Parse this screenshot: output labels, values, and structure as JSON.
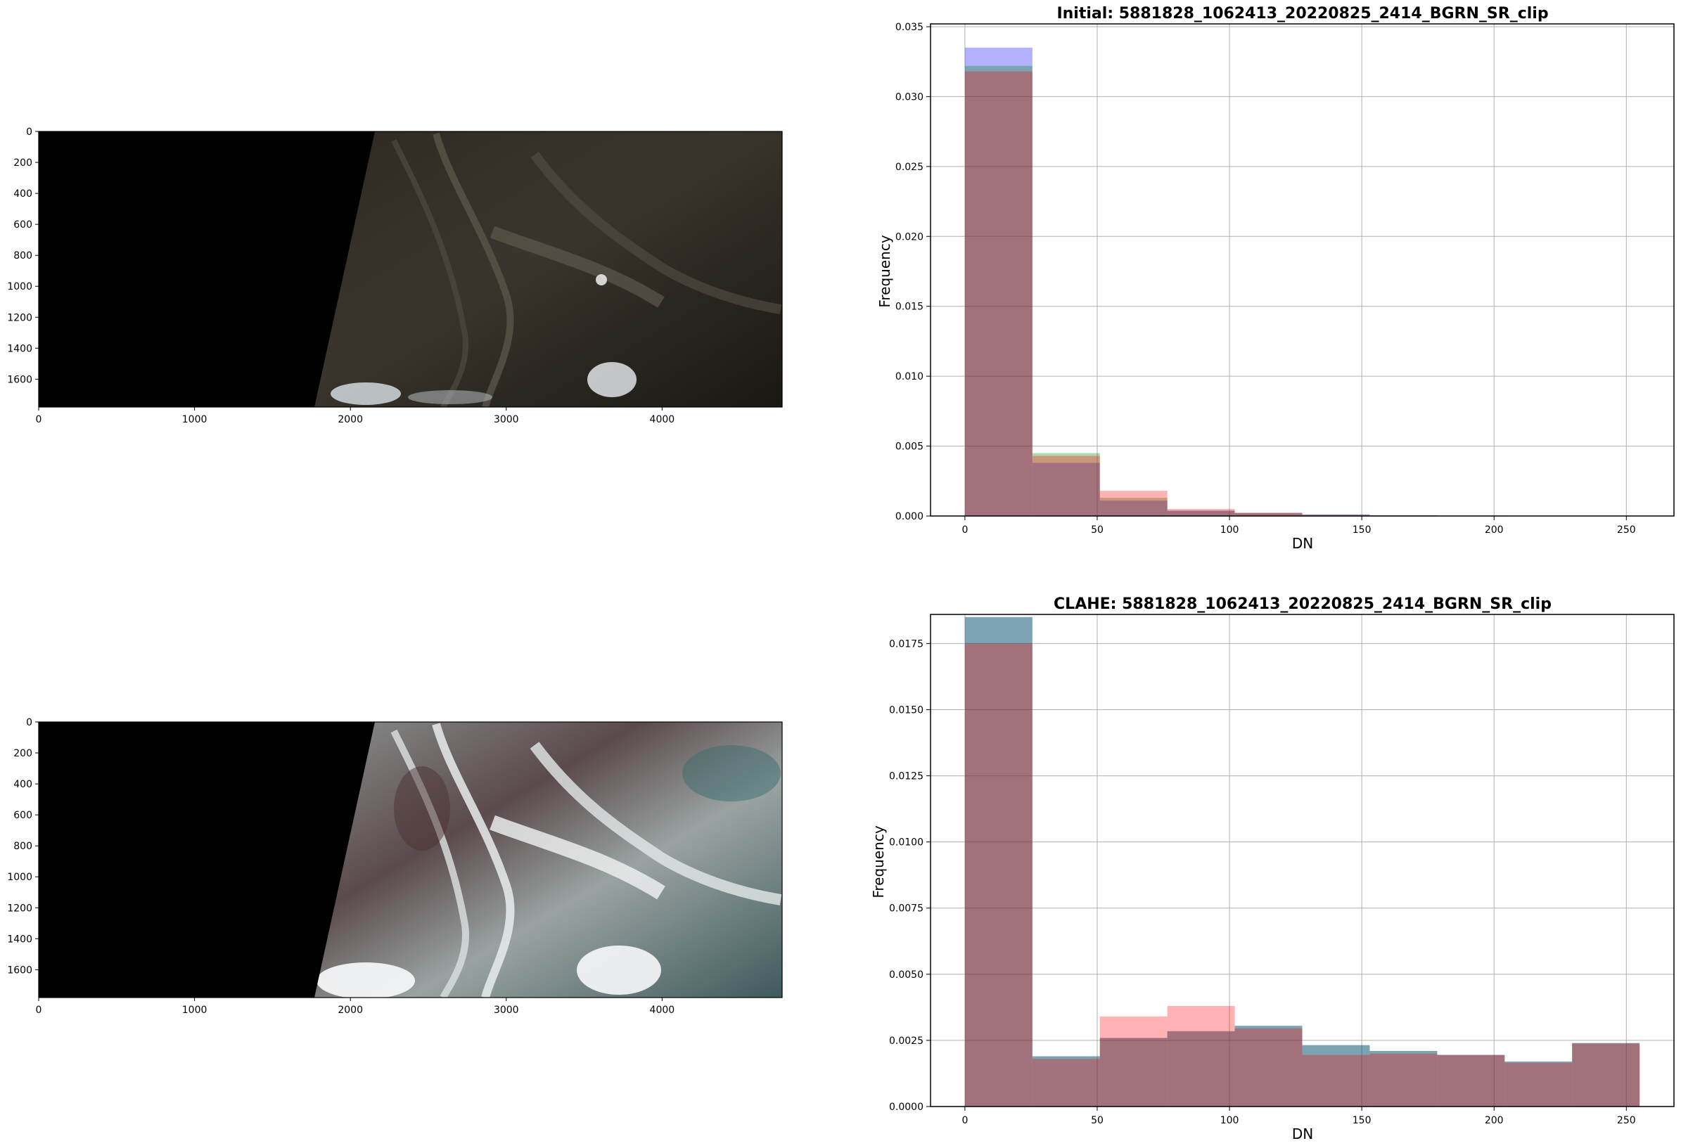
{
  "colors": {
    "blue": "#0000ff",
    "green": "#008000",
    "red": "#ff0000",
    "bar_alpha": 0.3,
    "grid": "#b0b0b0"
  },
  "images": [
    {
      "kind": "satellite-image-initial",
      "x_ticks": [
        "0",
        "1000",
        "2000",
        "3000",
        "4000"
      ],
      "y_ticks": [
        "0",
        "200",
        "400",
        "600",
        "800",
        "1000",
        "1200",
        "1400",
        "1600"
      ],
      "x_range": [
        0,
        4770
      ],
      "y_range": [
        0,
        1780
      ]
    },
    {
      "kind": "satellite-image-clahe",
      "x_ticks": [
        "0",
        "1000",
        "2000",
        "3000",
        "4000"
      ],
      "y_ticks": [
        "0",
        "200",
        "400",
        "600",
        "800",
        "1000",
        "1200",
        "1400",
        "1600"
      ],
      "x_range": [
        0,
        4770
      ],
      "y_range": [
        0,
        1780
      ]
    }
  ],
  "chart_data": [
    {
      "type": "bar",
      "title": "Initial: 5881828_1062413_20220825_2414_BGRN_SR_clip",
      "xlabel": "DN",
      "ylabel": "Frequency",
      "xlim": [
        -13,
        268
      ],
      "ylim": [
        0,
        0.0352
      ],
      "x_ticks": [
        0,
        50,
        100,
        150,
        200,
        250
      ],
      "y_ticks": [
        0.0,
        0.005,
        0.01,
        0.015,
        0.02,
        0.025,
        0.03,
        0.035
      ],
      "y_tick_labels": [
        "0.000",
        "0.005",
        "0.010",
        "0.015",
        "0.020",
        "0.025",
        "0.030",
        "0.035"
      ],
      "grid": true,
      "bin_edges": [
        0,
        25.5,
        51,
        76.5,
        102,
        127.5,
        153,
        178.5,
        204,
        229.5,
        255
      ],
      "series": [
        {
          "color": "blue",
          "values": [
            0.0335,
            0.0038,
            0.0011,
            0.0004,
            0.0002,
            0.00012,
            5e-05,
            3e-05,
            1e-05,
            0.0
          ]
        },
        {
          "color": "green",
          "values": [
            0.0322,
            0.0045,
            0.0013,
            0.00035,
            0.0002,
            8e-05,
            4e-05,
            2e-05,
            1e-05,
            0.0
          ]
        },
        {
          "color": "red",
          "values": [
            0.0318,
            0.0043,
            0.0018,
            0.0005,
            0.00025,
            8e-05,
            4e-05,
            2e-05,
            1e-05,
            0.0
          ]
        }
      ]
    },
    {
      "type": "bar",
      "title": "CLAHE: 5881828_1062413_20220825_2414_BGRN_SR_clip",
      "xlabel": "DN",
      "ylabel": "Frequency",
      "xlim": [
        -13,
        268
      ],
      "ylim": [
        0,
        0.0186
      ],
      "x_ticks": [
        0,
        50,
        100,
        150,
        200,
        250
      ],
      "y_ticks": [
        0,
        0.0025,
        0.005,
        0.0075,
        0.01,
        0.0125,
        0.015,
        0.0175
      ],
      "y_tick_labels": [
        "0.0000",
        "0.0025",
        "0.0050",
        "0.0075",
        "0.0100",
        "0.0125",
        "0.0150",
        "0.0175"
      ],
      "grid": true,
      "bin_edges": [
        0,
        25.5,
        51,
        76.5,
        102,
        127.5,
        153,
        178.5,
        204,
        229.5,
        255
      ],
      "series": [
        {
          "color": "blue",
          "values": [
            0.0185,
            0.0019,
            0.0026,
            0.00285,
            0.00305,
            0.00232,
            0.0021,
            0.00195,
            0.0017,
            0.0024
          ]
        },
        {
          "color": "green",
          "values": [
            0.0185,
            0.0019,
            0.00258,
            0.00284,
            0.00305,
            0.00232,
            0.0021,
            0.00195,
            0.0017,
            0.0024
          ]
        },
        {
          "color": "red",
          "values": [
            0.0175,
            0.0018,
            0.0034,
            0.0038,
            0.00295,
            0.00195,
            0.002,
            0.00195,
            0.00165,
            0.00238
          ]
        }
      ]
    }
  ]
}
